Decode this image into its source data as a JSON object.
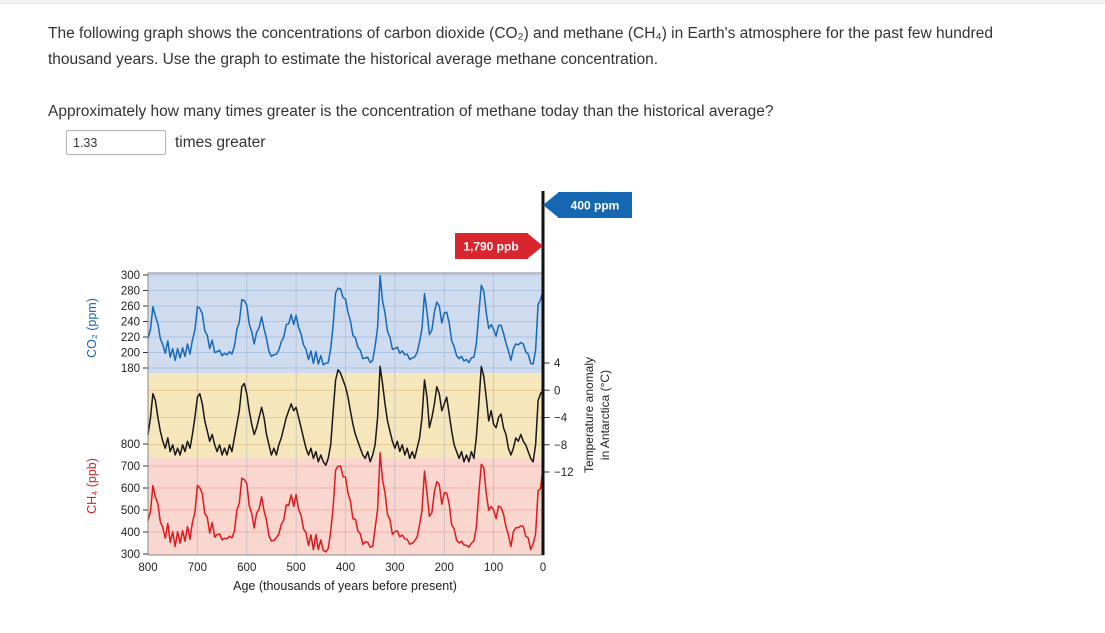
{
  "page": {
    "question_text_1": "The following graph shows the concentrations of carbon dioxide (CO₂) and methane (CH₄) in Earth's atmosphere for the past few hundred thousand years. Use the graph to estimate the historical average methane concentration.",
    "question_text_2": "Approximately how many times greater is the concentration of methane today than the historical average?",
    "answer": {
      "value": "1.33",
      "suffix": "times greater"
    }
  },
  "chart_data": {
    "type": "line",
    "title": "",
    "xlabel": "Age (thousands of years before present)",
    "x_axis": {
      "min": 0,
      "max": 800,
      "reversed": true,
      "ticks": [
        800,
        700,
        600,
        500,
        400,
        300,
        200,
        100,
        0
      ]
    },
    "grid": true,
    "x": [
      800,
      795,
      790,
      785,
      780,
      775,
      770,
      765,
      760,
      755,
      750,
      745,
      740,
      735,
      730,
      725,
      720,
      715,
      710,
      705,
      700,
      695,
      690,
      685,
      680,
      675,
      670,
      665,
      660,
      655,
      650,
      645,
      640,
      635,
      630,
      625,
      620,
      615,
      610,
      605,
      600,
      595,
      590,
      585,
      580,
      575,
      570,
      565,
      560,
      555,
      550,
      545,
      540,
      535,
      530,
      525,
      520,
      515,
      510,
      505,
      500,
      495,
      490,
      485,
      480,
      475,
      470,
      465,
      460,
      455,
      450,
      445,
      440,
      435,
      430,
      425,
      420,
      415,
      410,
      405,
      400,
      395,
      390,
      385,
      380,
      375,
      370,
      365,
      360,
      355,
      350,
      345,
      340,
      335,
      330,
      325,
      320,
      315,
      310,
      305,
      300,
      295,
      290,
      285,
      280,
      275,
      270,
      265,
      260,
      255,
      250,
      245,
      240,
      235,
      230,
      225,
      220,
      215,
      210,
      205,
      200,
      195,
      190,
      185,
      180,
      175,
      170,
      165,
      160,
      155,
      150,
      145,
      140,
      135,
      130,
      125,
      120,
      115,
      110,
      105,
      100,
      95,
      90,
      85,
      80,
      75,
      70,
      65,
      60,
      55,
      50,
      45,
      40,
      35,
      30,
      25,
      20,
      15,
      10,
      5,
      0
    ],
    "panels": [
      {
        "id": "co2",
        "ylabel": "CO₂ (ppm)",
        "unit": "ppm",
        "ticks": [
          300,
          280,
          260,
          240,
          220,
          200,
          180
        ],
        "ymin": 180,
        "ymax": 300,
        "line_color": "#1668b8",
        "band_color": "#cfdcf0",
        "grid_color": "#a3bede",
        "label_color": "#1b64ae",
        "today": {
          "label": "400 ppm",
          "arrow_color": "#1467b0",
          "direction": "left"
        }
      },
      {
        "id": "temp",
        "ylabel_line1": "Temperature anomaly",
        "ylabel_line2": "in Antarctica (°C)",
        "unit": "°C",
        "ticks": [
          4,
          0,
          -4,
          -8,
          -12
        ],
        "ymin": -12,
        "ymax": 4,
        "line_color": "#181818",
        "band_color": "#f6e6bb",
        "grid_color": "#dcc07e",
        "label_color": "#222222"
      },
      {
        "id": "ch4",
        "ylabel": "CH₄ (ppb)",
        "unit": "ppb",
        "ticks": [
          800,
          700,
          600,
          500,
          400,
          300
        ],
        "ymin": 300,
        "ymax": 800,
        "line_color": "#e0191f",
        "band_color": "#f9d7ce",
        "grid_color": "#eba79f",
        "label_color": "#d42027",
        "today": {
          "label": "1,790 ppb",
          "arrow_color": "#d9252e",
          "direction": "right"
        }
      }
    ],
    "series": [
      {
        "name": "CO₂ (ppm)",
        "panel": "co2",
        "values": [
          218,
          230,
          259,
          247,
          237,
          218,
          210,
          199,
          215,
          194,
          205,
          190,
          205,
          193,
          206,
          195,
          211,
          198,
          216,
          229,
          259,
          257,
          250,
          228,
          222,
          205,
          216,
          200,
          201,
          203,
          196,
          199,
          197,
          201,
          198,
          208,
          230,
          239,
          268,
          267,
          261,
          237,
          227,
          211,
          226,
          232,
          246,
          231,
          218,
          201,
          195,
          197,
          198,
          203,
          214,
          220,
          236,
          237,
          249,
          236,
          248,
          232,
          224,
          210,
          204,
          191,
          202,
          186,
          201,
          185,
          196,
          184,
          186,
          187,
          205,
          236,
          277,
          283,
          282,
          271,
          269,
          252,
          241,
          222,
          219,
          207,
          203,
          192,
          193,
          194,
          187,
          190,
          208,
          232,
          299,
          267,
          251,
          227,
          220,
          204,
          205,
          207,
          199,
          202,
          197,
          198,
          191,
          193,
          194,
          200,
          214,
          231,
          276,
          252,
          223,
          229,
          252,
          265,
          260,
          238,
          251,
          252,
          238,
          215,
          208,
          196,
          192,
          195,
          189,
          191,
          187,
          193,
          194,
          211,
          250,
          287,
          279,
          252,
          231,
          236,
          230,
          221,
          235,
          235,
          225,
          212,
          202,
          190,
          205,
          211,
          210,
          213,
          211,
          201,
          198,
          186,
          185,
          203,
          262,
          268,
          280
        ]
      },
      {
        "name": "Temperature anomaly in Antarctica (°C)",
        "panel": "temp",
        "values": [
          -6.5,
          -4,
          -0.5,
          -1.5,
          -4,
          -6,
          -7.5,
          -8.5,
          -7,
          -9,
          -8,
          -9.5,
          -8.5,
          -9.5,
          -8,
          -9,
          -7.5,
          -8.5,
          -6.5,
          -4,
          -1,
          -0.5,
          -2,
          -4.5,
          -6,
          -7.5,
          -6.5,
          -8,
          -9,
          -8,
          -9.5,
          -8.5,
          -9.5,
          -8,
          -9,
          -7,
          -5,
          -3,
          0.5,
          1,
          -0.5,
          -3,
          -5,
          -6.5,
          -5.5,
          -4,
          -2.5,
          -4,
          -6.5,
          -8,
          -9.5,
          -8.5,
          -9.5,
          -8,
          -7,
          -5.5,
          -4,
          -3,
          -2,
          -3,
          -2.5,
          -4,
          -5.5,
          -7,
          -8.5,
          -9.5,
          -8.5,
          -10,
          -9,
          -10.5,
          -9.5,
          -10.5,
          -11,
          -10,
          -8,
          -3,
          1.5,
          3,
          2.5,
          1.5,
          0.5,
          -1,
          -3,
          -5,
          -6.5,
          -7.5,
          -8.5,
          -9.5,
          -10,
          -9,
          -10.5,
          -9.5,
          -8,
          -4,
          3.5,
          1,
          -2,
          -4.5,
          -6,
          -7.5,
          -8.5,
          -7.5,
          -9,
          -8,
          -9.5,
          -8.5,
          -10,
          -9,
          -10,
          -8.5,
          -7,
          -4,
          1.5,
          -1,
          -5.5,
          -4,
          -2,
          0.5,
          -0.5,
          -3,
          -2,
          -1,
          -3.5,
          -6,
          -8,
          -9,
          -10,
          -9,
          -10.5,
          -9.5,
          -10.5,
          -9,
          -10,
          -7,
          -2,
          3.5,
          2,
          -1,
          -4.5,
          -3,
          -5,
          -5.5,
          -4,
          -3.5,
          -5.5,
          -6.5,
          -8.5,
          -9.5,
          -8.5,
          -7,
          -7.5,
          -6.5,
          -7.5,
          -8,
          -9,
          -10,
          -10.5,
          -8,
          -1.5,
          -0.5,
          0
        ]
      },
      {
        "name": "CH₄ (ppb)",
        "panel": "ch4",
        "values": [
          453,
          493,
          611,
          558,
          528,
          447,
          420,
          372,
          439,
          353,
          401,
          334,
          402,
          349,
          406,
          358,
          425,
          367,
          443,
          488,
          612,
          601,
          574,
          484,
          467,
          395,
          443,
          376,
          388,
          391,
          364,
          372,
          369,
          381,
          373,
          404,
          500,
          531,
          644,
          638,
          621,
          521,
          485,
          418,
          486,
          503,
          560,
          498,
          453,
          381,
          359,
          362,
          374,
          391,
          434,
          456,
          523,
          521,
          569,
          516,
          570,
          503,
          476,
          414,
          397,
          339,
          387,
          320,
          388,
          321,
          364,
          316,
          310,
          325,
          401,
          516,
          682,
          699,
          700,
          652,
          649,
          577,
          541,
          460,
          458,
          405,
          392,
          344,
          355,
          353,
          331,
          334,
          416,
          503,
          760,
          638,
          579,
          479,
          457,
          390,
          402,
          405,
          378,
          386,
          369,
          367,
          345,
          348,
          360,
          377,
          434,
          498,
          677,
          577,
          471,
          488,
          584,
          629,
          616,
          526,
          579,
          577,
          527,
          432,
          416,
          363,
          350,
          358,
          341,
          339,
          331,
          348,
          360,
          419,
          574,
          708,
          691,
          577,
          499,
          516,
          500,
          461,
          518,
          512,
          481,
          423,
          387,
          334,
          402,
          419,
          420,
          428,
          425,
          381,
          373,
          320,
          346,
          391,
          588,
          596,
          695
        ]
      }
    ],
    "annotations": [
      {
        "label": "400 ppm",
        "meaning": "present-day CO₂ concentration",
        "color": "#1467b0"
      },
      {
        "label": "1,790 ppb",
        "meaning": "present-day CH₄ concentration",
        "color": "#d9252e"
      }
    ]
  }
}
